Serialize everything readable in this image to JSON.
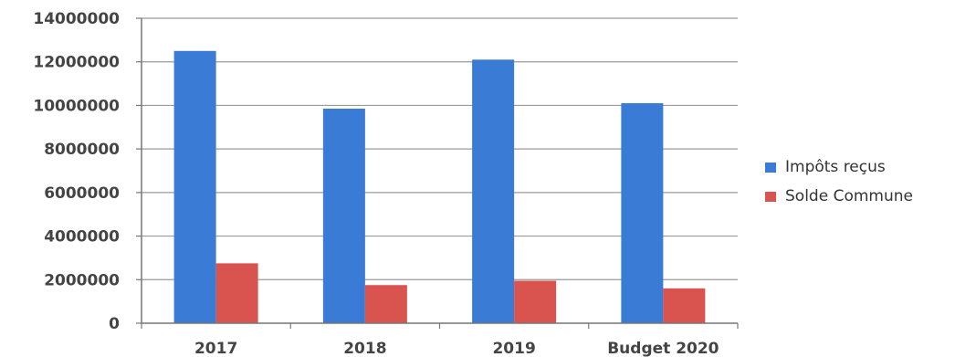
{
  "chart_data": {
    "type": "bar",
    "title": "",
    "xlabel": "",
    "ylabel": "",
    "categories": [
      "2017",
      "2018",
      "2019",
      "Budget 2020"
    ],
    "series": [
      {
        "name": "Impôts reçus",
        "color": "#3a7bd5",
        "values": [
          12500000,
          9850000,
          12100000,
          10100000
        ]
      },
      {
        "name": "Solde Commune",
        "color": "#d9534f",
        "values": [
          2750000,
          1750000,
          1950000,
          1600000
        ]
      }
    ],
    "ylim": [
      0,
      14000000
    ],
    "yticks": [
      "0",
      "2000000",
      "4000000",
      "6000000",
      "8000000",
      "10000000",
      "12000000",
      "14000000"
    ],
    "grid": true,
    "legend_position": "right"
  }
}
